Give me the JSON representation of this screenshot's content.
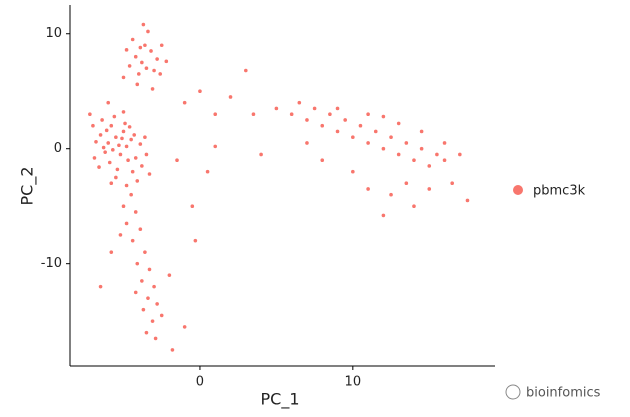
{
  "chart_data": {
    "type": "scatter",
    "x_label": "PC_1",
    "y_label": "PC_2",
    "xlim": [
      -8.5,
      19.3
    ],
    "ylim": [
      -18.9,
      12.5
    ],
    "xticks": [
      0,
      10
    ],
    "yticks": [
      -10,
      0,
      10
    ],
    "legend_position": "right",
    "watermark": "bioinfomics",
    "series": [
      {
        "name": "pbmc3k",
        "color": "#F8766D",
        "x": [
          -5.5,
          -6,
          -5,
          -6.5,
          -4.8,
          -5.8,
          -6.2,
          -5.2,
          -4.5,
          -6.8,
          -5.6,
          -4.2,
          -5.9,
          -6.4,
          -4.9,
          -5.3,
          -3.8,
          -4.4,
          -3.5,
          -6.9,
          -7,
          -5,
          -5.7,
          -4.6,
          -6.1,
          -3.9,
          -5.4,
          -4.1,
          -6.6,
          -4.7,
          -3.3,
          -5.1,
          -6.3,
          -5.5,
          -4.3,
          -7.2,
          -6,
          -3.6,
          -4.8,
          -5.8,
          -3.8,
          -4.2,
          -3.5,
          -4,
          -3.2,
          -4.6,
          -3.6,
          -2.8,
          -4.4,
          -3,
          -3.9,
          -2.6,
          -4.8,
          -3.4,
          -2.5,
          -4.1,
          -3.1,
          -5,
          -2.2,
          -3.7,
          -4.5,
          -5,
          -4.2,
          -4.8,
          -3.9,
          -4.4,
          -5.2,
          -3.6,
          -4.1,
          -3.3,
          -3.8,
          -3,
          -4.2,
          -3.4,
          -2.8,
          -3.7,
          -3.1,
          -2.5,
          -3.5,
          -2.9,
          -1.8,
          -1,
          -5.8,
          -6.5,
          -2,
          -1,
          0,
          1,
          3,
          2,
          1,
          3.5,
          0.5,
          -0.5,
          -0.3,
          4,
          -1.5,
          5,
          6,
          6.5,
          7,
          7.5,
          8,
          8.5,
          9,
          9.5,
          10,
          10.5,
          11,
          11.5,
          12,
          12.5,
          13,
          13.5,
          14,
          14.5,
          15,
          15.5,
          16,
          17,
          17.5,
          16.5,
          15,
          13.5,
          12.5,
          14,
          11,
          10,
          8,
          7,
          9,
          11,
          12,
          13,
          14.5,
          16,
          12
        ],
        "values": [
          1,
          0.5,
          1.5,
          1.2,
          0.2,
          2,
          -0.3,
          -0.5,
          0.8,
          0.6,
          2.8,
          -0.8,
          -1.2,
          2.5,
          2.2,
          0.3,
          -1.5,
          -2,
          -0.5,
          -0.8,
          2,
          3.2,
          -0.1,
          1.9,
          1.6,
          0.4,
          -1.8,
          -2.8,
          -1.6,
          -1,
          -2.2,
          0.9,
          0.1,
          -2.5,
          1.2,
          3,
          4,
          1,
          -3.2,
          -3,
          7.5,
          8,
          7,
          6.5,
          8.5,
          7.2,
          9,
          7.8,
          9.5,
          6.8,
          8.8,
          6.5,
          8.6,
          10.2,
          9,
          5.6,
          5.2,
          6.2,
          7.6,
          10.8,
          -4,
          -5,
          -5.5,
          -6.5,
          -7,
          -8,
          -7.5,
          -9,
          -10,
          -10.5,
          -11.5,
          -12,
          -12.5,
          -13,
          -13.5,
          -14,
          -15,
          -14.5,
          -16,
          -16.5,
          -17.5,
          -15.5,
          -9,
          -12,
          -11,
          4,
          5,
          3,
          6.8,
          4.5,
          0.2,
          3,
          -2,
          -5,
          -8,
          -0.5,
          -1,
          3.5,
          3,
          4,
          2.5,
          3.5,
          2,
          3,
          1.5,
          2.5,
          1,
          2,
          0.5,
          1.5,
          0,
          1,
          -0.5,
          0.5,
          -1,
          0,
          -1.5,
          -0.5,
          -1,
          -0.5,
          -4.5,
          -3,
          -3.5,
          -3,
          -4,
          -5,
          -3.5,
          -2,
          -1,
          0.5,
          3.5,
          3,
          2.8,
          2.2,
          1.5,
          0.5,
          -5.8
        ]
      }
    ]
  }
}
